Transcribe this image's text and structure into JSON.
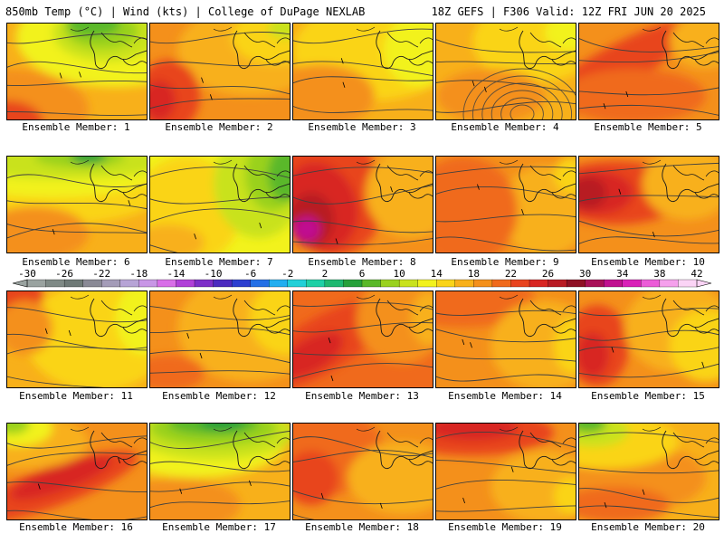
{
  "header": {
    "left": "850mb Temp (°C) | Wind (kts) | College of DuPage NEXLAB",
    "right": "18Z GEFS | F306 Valid: 12Z FRI JUN 20 2025"
  },
  "legend": {
    "ticks": [
      "-30",
      "-26",
      "-22",
      "-18",
      "-14",
      "-10",
      "-6",
      "-2",
      "2",
      "6",
      "10",
      "14",
      "18",
      "22",
      "26",
      "30",
      "34",
      "38",
      "42"
    ],
    "colors": [
      "#9aa3a0",
      "#7f8a86",
      "#6f7a77",
      "#8a8a96",
      "#a49cb8",
      "#b7a4d6",
      "#c896e6",
      "#d86ee8",
      "#b040d8",
      "#7d2fc8",
      "#4c2bbf",
      "#2d3fd0",
      "#2470e6",
      "#22aef0",
      "#22d0d8",
      "#1fd0a6",
      "#1fb870",
      "#27a03a",
      "#5ab82a",
      "#9ad11f",
      "#c9e21c",
      "#f2f21c",
      "#fad418",
      "#f8b01a",
      "#f4901b",
      "#f06a1c",
      "#e8441f",
      "#d82623",
      "#b81b24",
      "#8e1024",
      "#a81058",
      "#c01090",
      "#d920b8",
      "#ec5cd8",
      "#f5a0ec",
      "#fbd4f6"
    ]
  },
  "members": [
    {
      "label": "Ensemble Member: 1"
    },
    {
      "label": "Ensemble Member: 2"
    },
    {
      "label": "Ensemble Member: 3"
    },
    {
      "label": "Ensemble Member: 4"
    },
    {
      "label": "Ensemble Member: 5"
    },
    {
      "label": "Ensemble Member: 6"
    },
    {
      "label": "Ensemble Member: 7"
    },
    {
      "label": "Ensemble Member: 8"
    },
    {
      "label": "Ensemble Member: 9"
    },
    {
      "label": "Ensemble Member: 10"
    },
    {
      "label": "Ensemble Member: 11"
    },
    {
      "label": "Ensemble Member: 12"
    },
    {
      "label": "Ensemble Member: 13"
    },
    {
      "label": "Ensemble Member: 14"
    },
    {
      "label": "Ensemble Member: 15"
    },
    {
      "label": "Ensemble Member: 16"
    },
    {
      "label": "Ensemble Member: 17"
    },
    {
      "label": "Ensemble Member: 18"
    },
    {
      "label": "Ensemble Member: 19"
    },
    {
      "label": "Ensemble Member: 20"
    }
  ]
}
